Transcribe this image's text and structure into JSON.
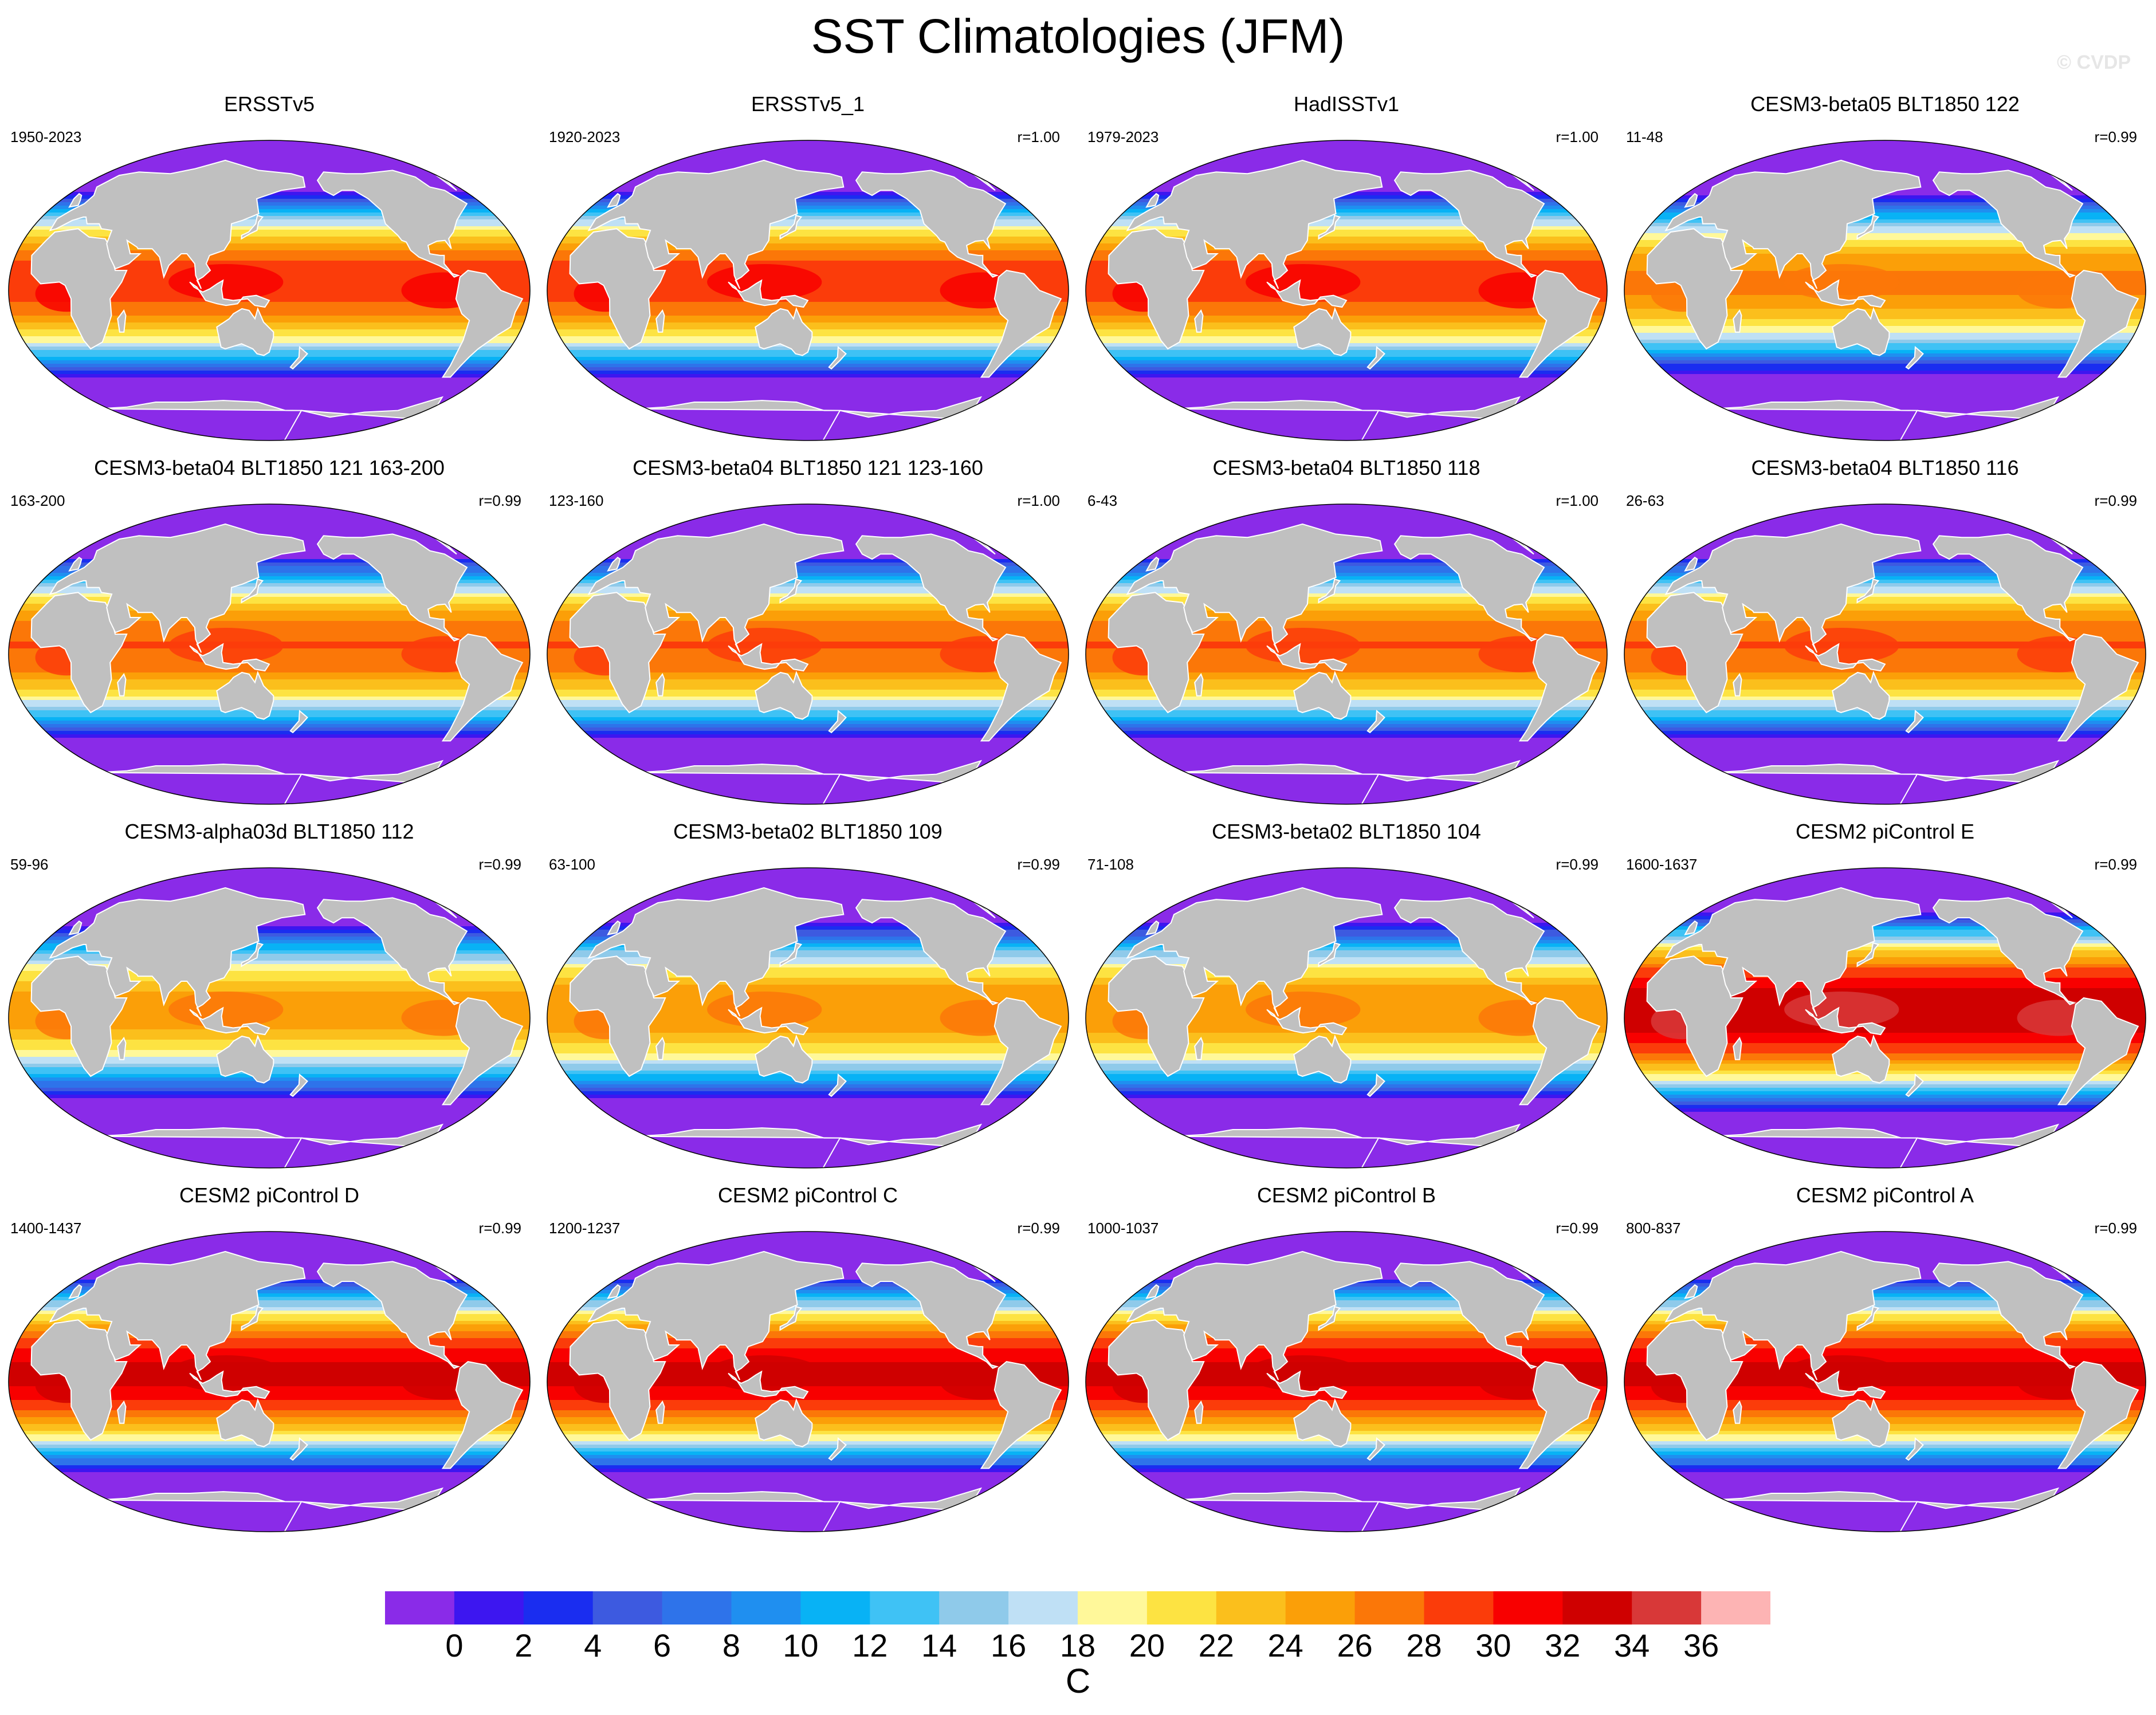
{
  "page": {
    "title": "SST Climatologies (JFM)",
    "credit": "© CVDP"
  },
  "panels": [
    {
      "title": "ERSSTv5",
      "years": "1950-2023",
      "corr": "",
      "warm": 1.0
    },
    {
      "title": "ERSSTv5_1",
      "years": "1920-2023",
      "corr": "r=1.00",
      "warm": 1.0
    },
    {
      "title": "HadISSTv1",
      "years": "1979-2023",
      "corr": "r=1.00",
      "warm": 1.0
    },
    {
      "title": "CESM3-beta05 BLT1850 122",
      "years": "11-48",
      "corr": "r=0.99",
      "warm": 0.9
    },
    {
      "title": "CESM3-beta04 BLT1850 121 163-200",
      "years": "163-200",
      "corr": "r=0.99",
      "warm": 0.95
    },
    {
      "title": "CESM3-beta04 BLT1850 121 123-160",
      "years": "123-160",
      "corr": "r=1.00",
      "warm": 0.95
    },
    {
      "title": "CESM3-beta04 BLT1850 118",
      "years": "6-43",
      "corr": "r=1.00",
      "warm": 0.95
    },
    {
      "title": "CESM3-beta04 BLT1850 116",
      "years": "26-63",
      "corr": "r=0.99",
      "warm": 0.95
    },
    {
      "title": "CESM3-alpha03d BLT1850 112",
      "years": "59-96",
      "corr": "r=0.99",
      "warm": 0.85
    },
    {
      "title": "CESM3-beta02 BLT1850 109",
      "years": "63-100",
      "corr": "r=0.99",
      "warm": 0.88
    },
    {
      "title": "CESM3-beta02 BLT1850 104",
      "years": "71-108",
      "corr": "r=0.99",
      "warm": 0.88
    },
    {
      "title": "CESM2 piControl E",
      "years": "1600-1637",
      "corr": "r=0.99",
      "warm": 1.15
    },
    {
      "title": "CESM2 piControl D",
      "years": "1400-1437",
      "corr": "r=0.99",
      "warm": 1.1
    },
    {
      "title": "CESM2 piControl C",
      "years": "1200-1237",
      "corr": "r=0.99",
      "warm": 1.1
    },
    {
      "title": "CESM2 piControl B",
      "years": "1000-1037",
      "corr": "r=0.99",
      "warm": 1.1
    },
    {
      "title": "CESM2 piControl A",
      "years": "800-837",
      "corr": "r=0.99",
      "warm": 1.1
    }
  ],
  "colorbar": {
    "units": "C",
    "ticks": [
      "0",
      "2",
      "4",
      "6",
      "8",
      "10",
      "12",
      "14",
      "16",
      "18",
      "20",
      "22",
      "24",
      "26",
      "28",
      "30",
      "32",
      "34",
      "36"
    ],
    "colors": [
      "#8a2be8",
      "#3d16f0",
      "#1a2df0",
      "#3d5ae0",
      "#2e73ea",
      "#1f8ff0",
      "#08b2f5",
      "#3fc2f5",
      "#8fcaea",
      "#bfe0f5",
      "#fff89a",
      "#fde342",
      "#fbbf1c",
      "#fb9f08",
      "#fb7708",
      "#fb3c0a",
      "#f80000",
      "#cf0000",
      "#d83838",
      "#fdb4b4"
    ],
    "land_color": "#c0c0c0"
  }
}
